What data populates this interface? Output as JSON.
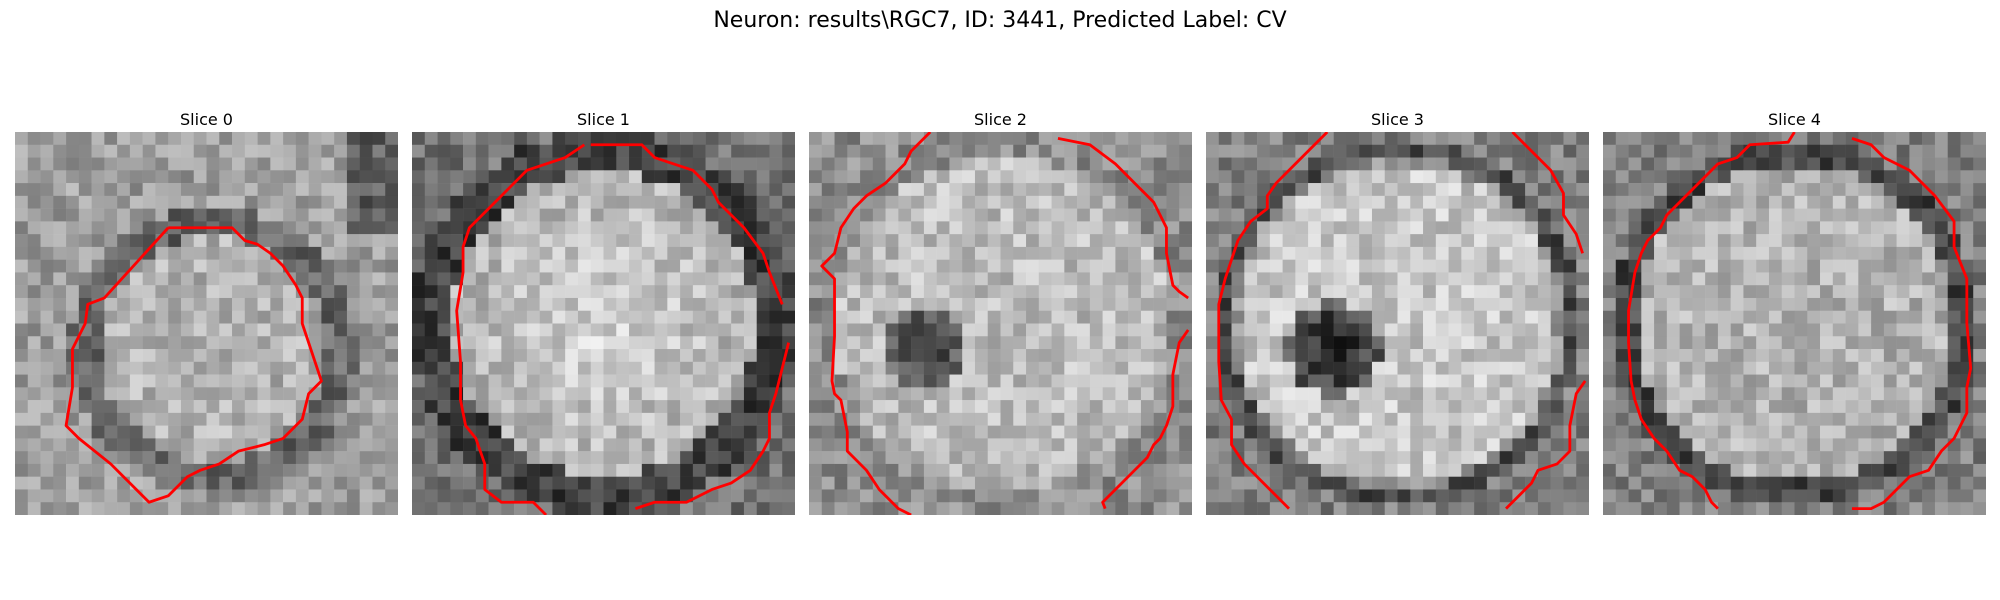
{
  "figure": {
    "title": "Neuron: results\\RGC7, ID: 3441, Predicted Label: CV"
  },
  "panels": [
    {
      "title": "Slice 0",
      "seed": 11,
      "type": "ring"
    },
    {
      "title": "Slice 1",
      "seed": 23,
      "type": "bright"
    },
    {
      "title": "Slice 2",
      "seed": 37,
      "type": "spot"
    },
    {
      "title": "Slice 3",
      "seed": 41,
      "type": "spot2"
    },
    {
      "title": "Slice 4",
      "seed": 53,
      "type": "speckle"
    }
  ],
  "colors": {
    "contour": "#ff0000",
    "background": "#ffffff"
  }
}
